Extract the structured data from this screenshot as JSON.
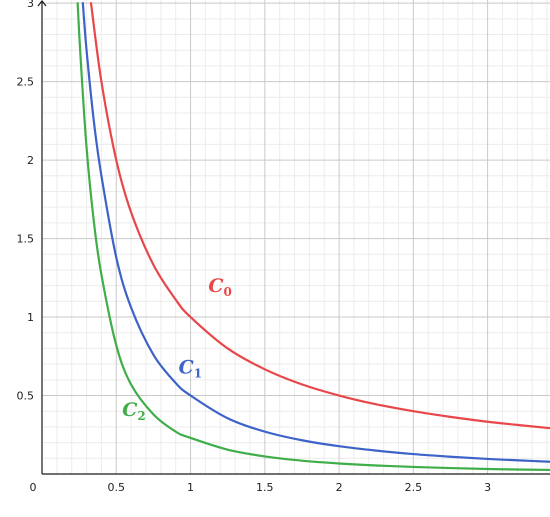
{
  "chart_data": {
    "type": "line",
    "title": "",
    "xlabel": "",
    "ylabel": "",
    "xlim": [
      0,
      3.42
    ],
    "ylim": [
      0,
      3.02
    ],
    "grid": true,
    "x_ticks": [
      0.5,
      1,
      1.5,
      2,
      2.5,
      3
    ],
    "x_tick_labels": [
      "0.5",
      "1",
      "1.5",
      "2",
      "2.5",
      "3"
    ],
    "y_ticks": [
      0.5,
      1,
      1.5,
      2,
      2.5,
      3
    ],
    "y_tick_labels": [
      "0.5",
      "1",
      "1.5",
      "2",
      "2.5",
      "3"
    ],
    "origin_label": "0",
    "series": [
      {
        "name": "C0",
        "label_main": "C",
        "label_sub": "0",
        "color": "#e8474a",
        "x": [
          0.33,
          0.4,
          0.5,
          0.6,
          0.75,
          0.9,
          1.0,
          1.25,
          1.5,
          1.75,
          2.0,
          2.25,
          2.5,
          2.75,
          3.0,
          3.25,
          3.42
        ],
        "y": [
          3.0,
          2.5,
          2.0,
          1.667,
          1.333,
          1.111,
          1.0,
          0.8,
          0.667,
          0.571,
          0.5,
          0.444,
          0.4,
          0.364,
          0.333,
          0.308,
          0.292
        ]
      },
      {
        "name": "C1",
        "label_main": "C",
        "label_sub": "1",
        "color": "#3d63c9",
        "x": [
          0.275,
          0.3,
          0.35,
          0.4,
          0.5,
          0.6,
          0.75,
          0.9,
          1.0,
          1.25,
          1.5,
          1.75,
          2.0,
          2.25,
          2.5,
          2.75,
          3.0,
          3.25,
          3.42
        ],
        "y": [
          3.0,
          2.7,
          2.24,
          1.9,
          1.38,
          1.06,
          0.76,
          0.58,
          0.5,
          0.355,
          0.27,
          0.215,
          0.177,
          0.149,
          0.127,
          0.11,
          0.096,
          0.085,
          0.078
        ]
      },
      {
        "name": "C2",
        "label_main": "C",
        "label_sub": "2",
        "color": "#3fae49",
        "x": [
          0.24,
          0.26,
          0.3,
          0.35,
          0.4,
          0.5,
          0.6,
          0.75,
          0.9,
          1.0,
          1.25,
          1.5,
          1.75,
          2.0,
          2.25,
          2.5,
          2.75,
          3.0,
          3.25,
          3.42
        ],
        "y": [
          3.0,
          2.65,
          2.08,
          1.6,
          1.27,
          0.82,
          0.57,
          0.38,
          0.27,
          0.23,
          0.155,
          0.112,
          0.085,
          0.067,
          0.054,
          0.045,
          0.038,
          0.032,
          0.028,
          0.026
        ]
      }
    ],
    "annotations": [
      {
        "series": "C0",
        "x": 1.12,
        "y": 1.16
      },
      {
        "series": "C1",
        "x": 0.92,
        "y": 0.64
      },
      {
        "series": "C2",
        "x": 0.54,
        "y": 0.37
      }
    ]
  }
}
